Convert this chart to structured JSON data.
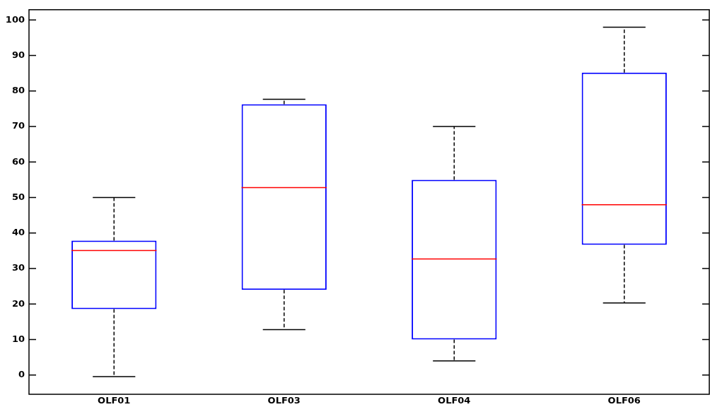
{
  "chart_data": {
    "type": "box",
    "categories": [
      "OLF01",
      "OLF03",
      "OLF04",
      "OLF06"
    ],
    "series": [
      {
        "color": "#0000ff",
        "boxes": [
          {
            "low": -0.4,
            "q1": 18.6,
            "median": 35.1,
            "q3": 37.9,
            "high": 50
          },
          {
            "low": 12.8,
            "q1": 24,
            "median": 52.8,
            "q3": 76.3,
            "high": 77.7
          },
          {
            "low": 4,
            "q1": 10,
            "median": 32.7,
            "q3": 55,
            "high": 70
          },
          {
            "low": 20.3,
            "q1": 36.7,
            "median": 48,
            "q3": 85.2,
            "high": 98
          }
        ]
      }
    ],
    "ylim": [
      -5.4,
      102.9
    ],
    "yticks": [
      0,
      10,
      20,
      30,
      40,
      50,
      60,
      70,
      80,
      90,
      100
    ],
    "grid": false,
    "legend": false
  }
}
